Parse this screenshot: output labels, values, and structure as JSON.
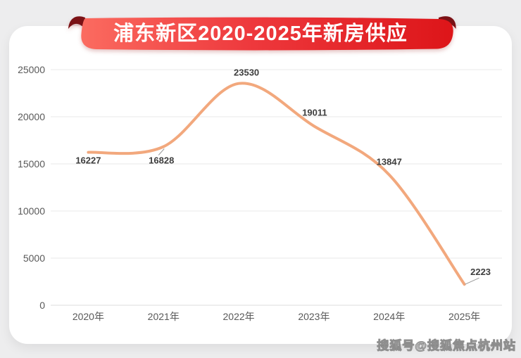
{
  "page_background": "#EDEDEE",
  "title_banner": {
    "text": "浦东新区2020-2025年新房供应",
    "text_color": "#FFFFFF",
    "gradient": [
      "#FB6B60",
      "#EE393D",
      "#DD1519"
    ],
    "fold_color": "#7A1115"
  },
  "watermark": {
    "text": "搜狐号@搜狐焦点杭州站"
  },
  "chart_data": {
    "type": "line",
    "title": "浦东新区2020-2025年新房供应",
    "smooth": true,
    "categories": [
      "2020年",
      "2021年",
      "2022年",
      "2023年",
      "2024年",
      "2025年"
    ],
    "values": [
      16227,
      16828,
      23530,
      19011,
      13847,
      2223
    ],
    "data_labels": [
      "16227",
      "16828",
      "23530",
      "19011",
      "13847",
      "2223"
    ],
    "y_ticks": [
      0,
      5000,
      10000,
      15000,
      20000,
      25000
    ],
    "ylim": [
      0,
      25000
    ],
    "xlabel": "",
    "ylabel": "",
    "grid": true,
    "legend": "none",
    "line_color": "#F2A87D",
    "gridline_color": "#E8E8E8",
    "axis_line_color": "#DCDCDC",
    "axis_label_color": "#595959",
    "data_label_color": "#3D3D3D"
  }
}
